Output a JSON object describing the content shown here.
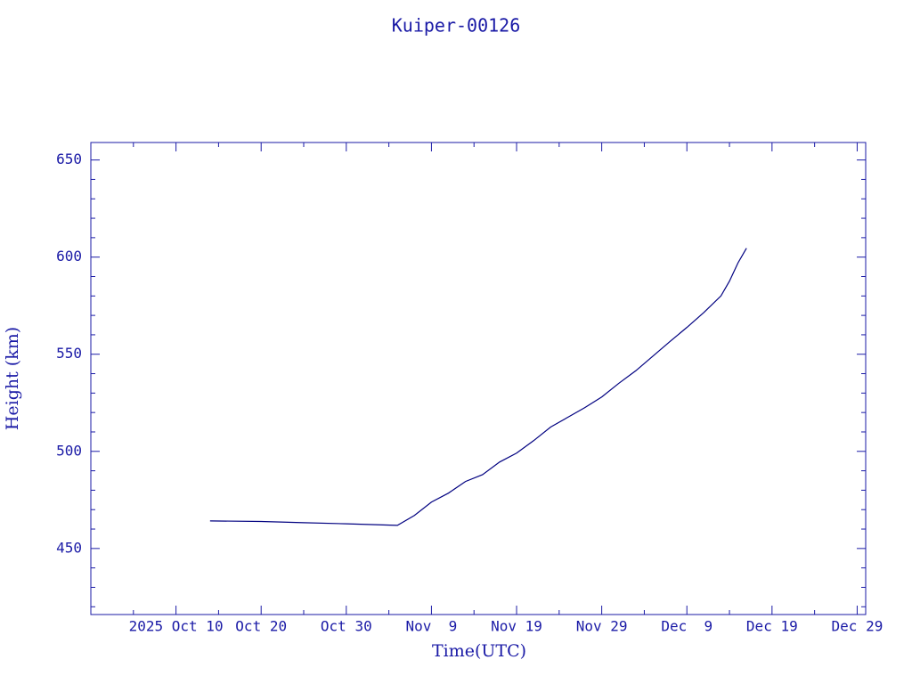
{
  "chart_data": {
    "type": "line",
    "title": "Kuiper-00126",
    "x_label": "Time(UTC)",
    "y_label": "Height (km)",
    "x": [
      "2025-10-14",
      "2025-10-20",
      "2025-10-25",
      "2025-10-30",
      "2025-11-05",
      "2025-11-07",
      "2025-11-09",
      "2025-11-11",
      "2025-11-13",
      "2025-11-15",
      "2025-11-17",
      "2025-11-19",
      "2025-11-21",
      "2025-11-23",
      "2025-11-25",
      "2025-11-27",
      "2025-11-29",
      "2025-12-01",
      "2025-12-03",
      "2025-12-05",
      "2025-12-07",
      "2025-12-09",
      "2025-12-11",
      "2025-12-13",
      "2025-12-14",
      "2025-12-15",
      "2025-12-16"
    ],
    "values": [
      464.2,
      463.9,
      463.3,
      462.7,
      461.9,
      467.0,
      473.9,
      478.5,
      484.5,
      488.0,
      494.5,
      499.1,
      505.5,
      512.5,
      517.5,
      522.5,
      528.0,
      535.0,
      541.5,
      549.0,
      556.5,
      563.8,
      571.5,
      580.0,
      587.6,
      597.0,
      604.6
    ],
    "color": "#000080",
    "xlim": [
      "2025-09-30",
      "2025-12-30"
    ],
    "xticks": [
      {
        "value": "2025-10-10",
        "label": "2025 Oct 10"
      },
      {
        "value": "2025-10-20",
        "label": "Oct 20"
      },
      {
        "value": "2025-10-30",
        "label": "Oct 30"
      },
      {
        "value": "2025-11-09",
        "label": "Nov  9"
      },
      {
        "value": "2025-11-19",
        "label": "Nov 19"
      },
      {
        "value": "2025-11-29",
        "label": "Nov 29"
      },
      {
        "value": "2025-12-09",
        "label": "Dec  9"
      },
      {
        "value": "2025-12-19",
        "label": "Dec 19"
      },
      {
        "value": "2025-12-29",
        "label": "Dec 29"
      }
    ],
    "xminorticks": [
      "2025-10-05",
      "2025-10-15",
      "2025-10-25",
      "2025-11-04",
      "2025-11-14",
      "2025-11-24",
      "2025-12-04",
      "2025-12-14",
      "2025-12-24"
    ],
    "ylim": [
      416,
      659
    ],
    "yticks": [
      450,
      500,
      550,
      600,
      650
    ],
    "yminorticks": [
      420,
      430,
      440,
      460,
      470,
      480,
      490,
      510,
      520,
      530,
      540,
      560,
      570,
      580,
      590,
      610,
      620,
      630,
      640
    ]
  }
}
